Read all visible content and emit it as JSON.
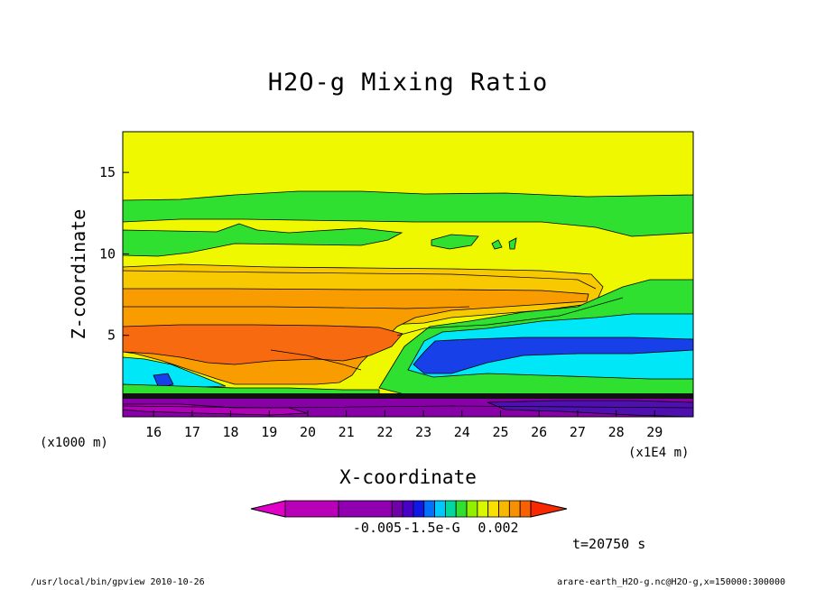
{
  "chart_data": {
    "type": "heatmap",
    "title": "H2O-g Mixing Ratio",
    "xlabel": "X-coordinate",
    "ylabel": "Z-coordinate",
    "x_unit_left": "(x1000 m)",
    "x_unit_right": "(x1E4 m)",
    "xlim": [
      15.2,
      30.0
    ],
    "ylim": [
      0,
      17.5
    ],
    "x_ticks": [
      "16",
      "17",
      "18",
      "19",
      "20",
      "21",
      "22",
      "23",
      "24",
      "25",
      "26",
      "27",
      "28",
      "29"
    ],
    "y_ticks": [
      "5",
      "10",
      "15"
    ],
    "colorbar": {
      "colors": [
        "#e000c8",
        "#b800b8",
        "#9000b0",
        "#7000a8",
        "#4800c8",
        "#1018e8",
        "#0070ff",
        "#00c8ff",
        "#00d8a0",
        "#30e030",
        "#90f000",
        "#d8f800",
        "#f8e000",
        "#f8b800",
        "#f89000",
        "#f86000",
        "#f82800"
      ],
      "labels": [
        "-0.005",
        "-1.5e-G",
        "0.002"
      ]
    },
    "time_label": "t=20750 s",
    "colors": {
      "yellow": "#f0f800",
      "green": "#30e030",
      "light_orange": "#f8c800",
      "orange": "#f89c00",
      "dark_orange": "#f86a10",
      "cyan": "#00e8f8",
      "blue": "#1840e8",
      "purple": "#8800a8",
      "dark_purple": "#5010b0",
      "magenta": "#b000b8"
    }
  },
  "footer": {
    "left": "/usr/local/bin/gpview  2010-10-26",
    "right": "arare-earth_H2O-g.nc@H2O-g,x=150000:300000"
  }
}
